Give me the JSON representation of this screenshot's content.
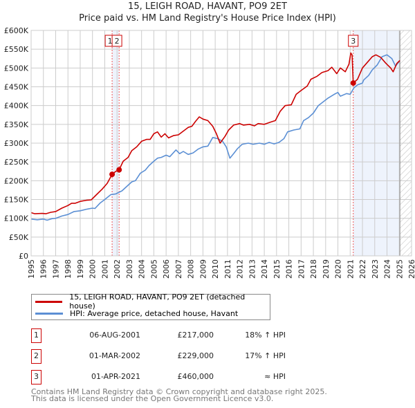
{
  "title_line1": "15, LEIGH ROAD, HAVANT, PO9 2ET",
  "title_line2": "Price paid vs. HM Land Registry's House Price Index (HPI)",
  "colors": {
    "property": "#cc0000",
    "hpi": "#5b8fd4",
    "shade": "#eef3fc",
    "grid": "#cccccc"
  },
  "chart_data": {
    "type": "line",
    "xlim": [
      1995,
      2026
    ],
    "ylim": [
      0,
      600000
    ],
    "yticks": [
      0,
      50000,
      100000,
      150000,
      200000,
      250000,
      300000,
      350000,
      400000,
      450000,
      500000,
      550000,
      600000
    ],
    "ytick_labels": [
      "£0",
      "£50K",
      "£100K",
      "£150K",
      "£200K",
      "£250K",
      "£300K",
      "£350K",
      "£400K",
      "£450K",
      "£500K",
      "£550K",
      "£600K"
    ],
    "xticks": [
      "1995",
      "1996",
      "1997",
      "1998",
      "1999",
      "2000",
      "2001",
      "2002",
      "2003",
      "2004",
      "2005",
      "2006",
      "2007",
      "2008",
      "2009",
      "2010",
      "2011",
      "2012",
      "2013",
      "2014",
      "2015",
      "2016",
      "2017",
      "2018",
      "2019",
      "2020",
      "2021",
      "2022",
      "2023",
      "2024",
      "2025",
      "2026"
    ],
    "grid": true,
    "data_end": 2025.05,
    "series": [
      {
        "name": "15, LEIGH ROAD, HAVANT, PO9 2ET (detached house)",
        "points": [
          [
            1995,
            115
          ],
          [
            1995.3,
            112
          ],
          [
            1995.9,
            113
          ],
          [
            1996.2,
            112
          ],
          [
            1996.6,
            116
          ],
          [
            1997,
            118
          ],
          [
            1997.5,
            127
          ],
          [
            1998,
            134
          ],
          [
            1998.3,
            140
          ],
          [
            1998.6,
            140
          ],
          [
            1999,
            145
          ],
          [
            1999.5,
            148
          ],
          [
            1999.9,
            149
          ],
          [
            2000.3,
            162
          ],
          [
            2000.8,
            178
          ],
          [
            2001.2,
            193
          ],
          [
            2001.6,
            217
          ],
          [
            2001.9,
            225
          ],
          [
            2002.17,
            229
          ],
          [
            2002.5,
            252
          ],
          [
            2002.9,
            262
          ],
          [
            2003.2,
            280
          ],
          [
            2003.6,
            290
          ],
          [
            2004,
            305
          ],
          [
            2004.4,
            310
          ],
          [
            2004.7,
            310
          ],
          [
            2005,
            325
          ],
          [
            2005.3,
            330
          ],
          [
            2005.6,
            316
          ],
          [
            2005.9,
            325
          ],
          [
            2006.2,
            314
          ],
          [
            2006.6,
            320
          ],
          [
            2007,
            322
          ],
          [
            2007.4,
            332
          ],
          [
            2007.8,
            342
          ],
          [
            2008.1,
            345
          ],
          [
            2008.4,
            358
          ],
          [
            2008.7,
            370
          ],
          [
            2009,
            364
          ],
          [
            2009.4,
            360
          ],
          [
            2009.8,
            345
          ],
          [
            2010.1,
            325
          ],
          [
            2010.4,
            300
          ],
          [
            2010.8,
            318
          ],
          [
            2011.1,
            335
          ],
          [
            2011.5,
            348
          ],
          [
            2012,
            352
          ],
          [
            2012.3,
            348
          ],
          [
            2012.8,
            350
          ],
          [
            2013.2,
            346
          ],
          [
            2013.5,
            352
          ],
          [
            2014,
            350
          ],
          [
            2014.5,
            356
          ],
          [
            2014.9,
            360
          ],
          [
            2015.3,
            385
          ],
          [
            2015.7,
            400
          ],
          [
            2016.2,
            402
          ],
          [
            2016.6,
            430
          ],
          [
            2017,
            440
          ],
          [
            2017.5,
            452
          ],
          [
            2017.8,
            470
          ],
          [
            2018.3,
            478
          ],
          [
            2018.7,
            488
          ],
          [
            2019.2,
            493
          ],
          [
            2019.5,
            502
          ],
          [
            2019.9,
            485
          ],
          [
            2020.2,
            500
          ],
          [
            2020.6,
            490
          ],
          [
            2020.9,
            510
          ],
          [
            2021.05,
            540
          ],
          [
            2021.15,
            535
          ],
          [
            2021.25,
            460
          ],
          [
            2021.6,
            470
          ],
          [
            2022,
            500
          ],
          [
            2022.4,
            515
          ],
          [
            2022.8,
            530
          ],
          [
            2023.1,
            535
          ],
          [
            2023.5,
            528
          ],
          [
            2023.9,
            513
          ],
          [
            2024.3,
            500
          ],
          [
            2024.5,
            490
          ],
          [
            2024.8,
            512
          ],
          [
            2025.05,
            520
          ]
        ]
      },
      {
        "name": "HPI: Average price, detached house, Havant",
        "points": [
          [
            1995,
            98
          ],
          [
            1995.5,
            96
          ],
          [
            1996,
            98
          ],
          [
            1996.3,
            95
          ],
          [
            1996.7,
            99
          ],
          [
            1997,
            100
          ],
          [
            1997.5,
            106
          ],
          [
            1998,
            110
          ],
          [
            1998.5,
            118
          ],
          [
            1999,
            120
          ],
          [
            1999.5,
            124
          ],
          [
            2000,
            127
          ],
          [
            2000.2,
            126
          ],
          [
            2000.6,
            140
          ],
          [
            2001,
            150
          ],
          [
            2001.5,
            163
          ],
          [
            2001.9,
            165
          ],
          [
            2002.4,
            173
          ],
          [
            2002.8,
            185
          ],
          [
            2003.2,
            197
          ],
          [
            2003.5,
            200
          ],
          [
            2003.9,
            220
          ],
          [
            2004.3,
            228
          ],
          [
            2004.6,
            240
          ],
          [
            2005,
            252
          ],
          [
            2005.3,
            260
          ],
          [
            2005.6,
            262
          ],
          [
            2006,
            268
          ],
          [
            2006.3,
            264
          ],
          [
            2006.8,
            282
          ],
          [
            2007.1,
            272
          ],
          [
            2007.4,
            278
          ],
          [
            2007.8,
            270
          ],
          [
            2008.2,
            274
          ],
          [
            2008.6,
            284
          ],
          [
            2009,
            290
          ],
          [
            2009.4,
            292
          ],
          [
            2009.8,
            315
          ],
          [
            2010.2,
            312
          ],
          [
            2010.6,
            305
          ],
          [
            2010.9,
            290
          ],
          [
            2011.2,
            260
          ],
          [
            2011.5,
            272
          ],
          [
            2011.8,
            285
          ],
          [
            2012.2,
            297
          ],
          [
            2012.7,
            300
          ],
          [
            2013.1,
            297
          ],
          [
            2013.6,
            300
          ],
          [
            2014,
            297
          ],
          [
            2014.4,
            302
          ],
          [
            2014.8,
            298
          ],
          [
            2015.2,
            302
          ],
          [
            2015.6,
            312
          ],
          [
            2015.9,
            330
          ],
          [
            2016.4,
            335
          ],
          [
            2016.9,
            338
          ],
          [
            2017.2,
            360
          ],
          [
            2017.6,
            368
          ],
          [
            2018,
            380
          ],
          [
            2018.4,
            400
          ],
          [
            2018.8,
            410
          ],
          [
            2019.2,
            420
          ],
          [
            2019.7,
            430
          ],
          [
            2020,
            435
          ],
          [
            2020.2,
            425
          ],
          [
            2020.7,
            432
          ],
          [
            2021,
            430
          ],
          [
            2021.3,
            447
          ],
          [
            2021.6,
            455
          ],
          [
            2022,
            460
          ],
          [
            2022.1,
            468
          ],
          [
            2022.5,
            480
          ],
          [
            2022.8,
            495
          ],
          [
            2023.2,
            508
          ],
          [
            2023.6,
            530
          ],
          [
            2024,
            535
          ],
          [
            2024.4,
            525
          ],
          [
            2024.7,
            505
          ],
          [
            2025.05,
            520
          ]
        ]
      }
    ],
    "sales": [
      {
        "label": "1",
        "x": 2001.6,
        "y": 217000
      },
      {
        "label": "2",
        "x": 2002.17,
        "y": 229000
      },
      {
        "label": "3",
        "x": 2021.25,
        "y": 460000
      }
    ],
    "shaded_ranges": [
      [
        2001.6,
        2002.17
      ],
      [
        2021.25,
        2025.05
      ]
    ]
  },
  "legend": [
    {
      "label": "15, LEIGH ROAD, HAVANT, PO9 2ET (detached house)"
    },
    {
      "label": "HPI: Average price, detached house, Havant"
    }
  ],
  "transactions": [
    {
      "num": "1",
      "date": "06-AUG-2001",
      "price": "£217,000",
      "hpi": "18% ↑ HPI"
    },
    {
      "num": "2",
      "date": "01-MAR-2002",
      "price": "£229,000",
      "hpi": "17% ↑ HPI"
    },
    {
      "num": "3",
      "date": "01-APR-2021",
      "price": "£460,000",
      "hpi": "≈ HPI"
    }
  ],
  "footer_line1": "Contains HM Land Registry data © Crown copyright and database right 2025.",
  "footer_line2": "This data is licensed under the Open Government Licence v3.0."
}
